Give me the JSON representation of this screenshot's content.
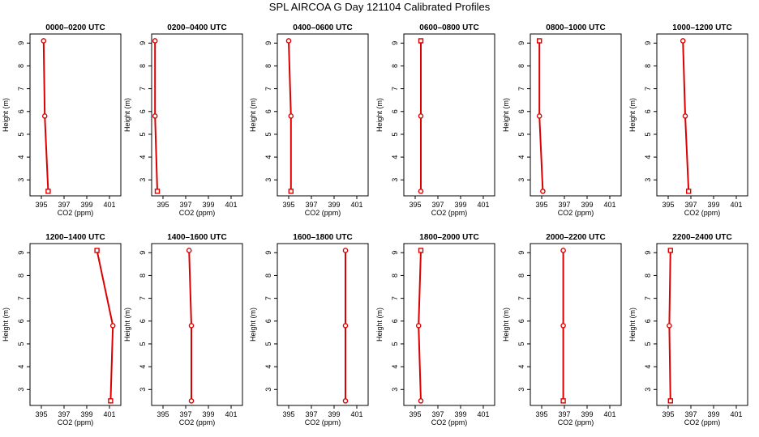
{
  "figure": {
    "title": "SPL AIRCOA G  Day 121104  Calibrated Profiles"
  },
  "colors": {
    "profile": "#dd0000",
    "axis": "#000000"
  },
  "chart_data": [
    {
      "type": "line",
      "title": "0000–0200 UTC",
      "xlabel": "CO2 (ppm)",
      "ylabel": "Height (m)",
      "xlim": [
        394,
        402
      ],
      "ylim": [
        2.3,
        9.4
      ],
      "xticks": [
        "395",
        "397",
        "399",
        "401"
      ],
      "yticks": [
        "3",
        "4",
        "5",
        "6",
        "7",
        "8",
        "9"
      ],
      "x": [
        395.2,
        395.3,
        395.6
      ],
      "y": [
        9.1,
        5.8,
        2.5
      ],
      "markers": [
        "circle",
        "circle",
        "square"
      ]
    },
    {
      "type": "line",
      "title": "0200–0400 UTC",
      "xlabel": "CO2 (ppm)",
      "ylabel": "Height (m)",
      "xlim": [
        394,
        402
      ],
      "ylim": [
        2.3,
        9.4
      ],
      "xticks": [
        "395",
        "397",
        "399",
        "401"
      ],
      "yticks": [
        "3",
        "4",
        "5",
        "6",
        "7",
        "8",
        "9"
      ],
      "x": [
        394.3,
        394.3,
        394.5
      ],
      "y": [
        9.1,
        5.8,
        2.5
      ],
      "markers": [
        "circle",
        "circle",
        "square"
      ]
    },
    {
      "type": "line",
      "title": "0400–0600 UTC",
      "xlabel": "CO2 (ppm)",
      "ylabel": "Height (m)",
      "xlim": [
        394,
        402
      ],
      "ylim": [
        2.3,
        9.4
      ],
      "xticks": [
        "395",
        "397",
        "399",
        "401"
      ],
      "yticks": [
        "3",
        "4",
        "5",
        "6",
        "7",
        "8",
        "9"
      ],
      "x": [
        395.0,
        395.2,
        395.2
      ],
      "y": [
        9.1,
        5.8,
        2.5
      ],
      "markers": [
        "circle",
        "circle",
        "square"
      ]
    },
    {
      "type": "line",
      "title": "0600–0800 UTC",
      "xlabel": "CO2 (ppm)",
      "ylabel": "Height (m)",
      "xlim": [
        394,
        402
      ],
      "ylim": [
        2.3,
        9.4
      ],
      "xticks": [
        "395",
        "397",
        "399",
        "401"
      ],
      "yticks": [
        "3",
        "4",
        "5",
        "6",
        "7",
        "8",
        "9"
      ],
      "x": [
        395.5,
        395.5,
        395.5
      ],
      "y": [
        9.1,
        5.8,
        2.5
      ],
      "markers": [
        "square",
        "circle",
        "circle"
      ]
    },
    {
      "type": "line",
      "title": "0800–1000 UTC",
      "xlabel": "CO2 (ppm)",
      "ylabel": "Height (m)",
      "xlim": [
        394,
        402
      ],
      "ylim": [
        2.3,
        9.4
      ],
      "xticks": [
        "395",
        "397",
        "399",
        "401"
      ],
      "yticks": [
        "3",
        "4",
        "5",
        "6",
        "7",
        "8",
        "9"
      ],
      "x": [
        394.8,
        394.8,
        395.1
      ],
      "y": [
        9.1,
        5.8,
        2.5
      ],
      "markers": [
        "square",
        "circle",
        "circle"
      ]
    },
    {
      "type": "line",
      "title": "1000–1200 UTC",
      "xlabel": "CO2 (ppm)",
      "ylabel": "Height (m)",
      "xlim": [
        394,
        402
      ],
      "ylim": [
        2.3,
        9.4
      ],
      "xticks": [
        "395",
        "397",
        "399",
        "401"
      ],
      "yticks": [
        "3",
        "4",
        "5",
        "6",
        "7",
        "8",
        "9"
      ],
      "x": [
        396.3,
        396.5,
        396.8
      ],
      "y": [
        9.1,
        5.8,
        2.5
      ],
      "markers": [
        "circle",
        "circle",
        "square"
      ]
    },
    {
      "type": "line",
      "title": "1200–1400 UTC",
      "xlabel": "CO2 (ppm)",
      "ylabel": "Height (m)",
      "xlim": [
        394,
        402
      ],
      "ylim": [
        2.3,
        9.4
      ],
      "xticks": [
        "395",
        "397",
        "399",
        "401"
      ],
      "yticks": [
        "3",
        "4",
        "5",
        "6",
        "7",
        "8",
        "9"
      ],
      "x": [
        399.9,
        401.3,
        401.1
      ],
      "y": [
        9.1,
        5.8,
        2.5
      ],
      "markers": [
        "square",
        "circle",
        "square"
      ]
    },
    {
      "type": "line",
      "title": "1400–1600 UTC",
      "xlabel": "CO2 (ppm)",
      "ylabel": "Height (m)",
      "xlim": [
        394,
        402
      ],
      "ylim": [
        2.3,
        9.4
      ],
      "xticks": [
        "395",
        "397",
        "399",
        "401"
      ],
      "yticks": [
        "3",
        "4",
        "5",
        "6",
        "7",
        "8",
        "9"
      ],
      "x": [
        397.3,
        397.5,
        397.5
      ],
      "y": [
        9.1,
        5.8,
        2.5
      ],
      "markers": [
        "circle",
        "circle",
        "circle"
      ]
    },
    {
      "type": "line",
      "title": "1600–1800 UTC",
      "xlabel": "CO2 (ppm)",
      "ylabel": "Height (m)",
      "xlim": [
        394,
        402
      ],
      "ylim": [
        2.3,
        9.4
      ],
      "xticks": [
        "395",
        "397",
        "399",
        "401"
      ],
      "yticks": [
        "3",
        "4",
        "5",
        "6",
        "7",
        "8",
        "9"
      ],
      "x": [
        400.0,
        400.0,
        400.0
      ],
      "y": [
        9.1,
        5.8,
        2.5
      ],
      "markers": [
        "circle",
        "circle",
        "circle"
      ]
    },
    {
      "type": "line",
      "title": "1800–2000 UTC",
      "xlabel": "CO2 (ppm)",
      "ylabel": "Height (m)",
      "xlim": [
        394,
        402
      ],
      "ylim": [
        2.3,
        9.4
      ],
      "xticks": [
        "395",
        "397",
        "399",
        "401"
      ],
      "yticks": [
        "3",
        "4",
        "5",
        "6",
        "7",
        "8",
        "9"
      ],
      "x": [
        395.5,
        395.3,
        395.5
      ],
      "y": [
        9.1,
        5.8,
        2.5
      ],
      "markers": [
        "square",
        "circle",
        "circle"
      ]
    },
    {
      "type": "line",
      "title": "2000–2200 UTC",
      "xlabel": "CO2 (ppm)",
      "ylabel": "Height (m)",
      "xlim": [
        394,
        402
      ],
      "ylim": [
        2.3,
        9.4
      ],
      "xticks": [
        "395",
        "397",
        "399",
        "401"
      ],
      "yticks": [
        "3",
        "4",
        "5",
        "6",
        "7",
        "8",
        "9"
      ],
      "x": [
        396.9,
        396.9,
        396.9
      ],
      "y": [
        9.1,
        5.8,
        2.5
      ],
      "markers": [
        "circle",
        "circle",
        "square"
      ]
    },
    {
      "type": "line",
      "title": "2200–2400 UTC",
      "xlabel": "CO2 (ppm)",
      "ylabel": "Height (m)",
      "xlim": [
        394,
        402
      ],
      "ylim": [
        2.3,
        9.4
      ],
      "xticks": [
        "395",
        "397",
        "399",
        "401"
      ],
      "yticks": [
        "3",
        "4",
        "5",
        "6",
        "7",
        "8",
        "9"
      ],
      "x": [
        395.2,
        395.1,
        395.2
      ],
      "y": [
        9.1,
        5.8,
        2.5
      ],
      "markers": [
        "square",
        "circle",
        "square"
      ]
    }
  ]
}
